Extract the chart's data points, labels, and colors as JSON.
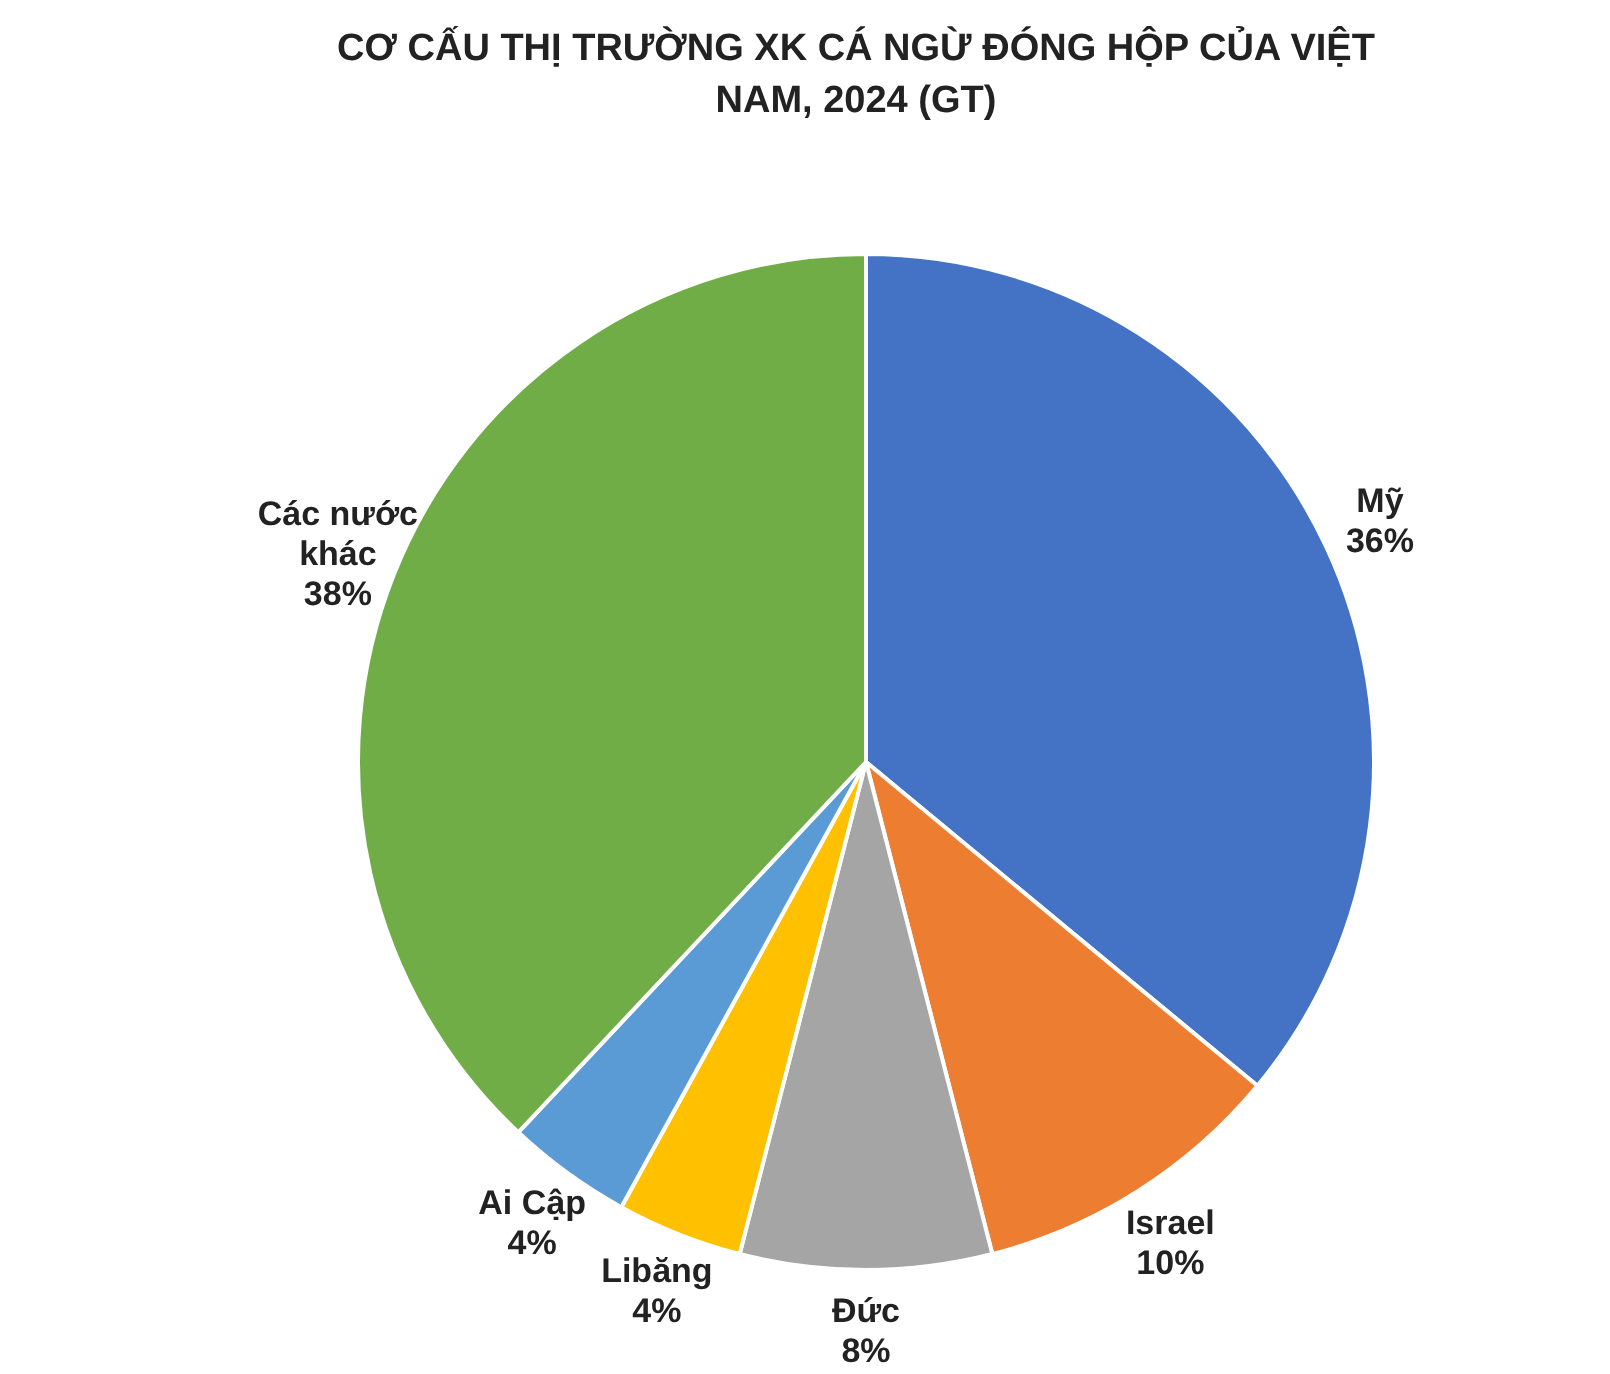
{
  "chart_data": {
    "type": "pie",
    "title": "CƠ CẤU THỊ TRƯỜNG XK CÁ NGỪ ĐÓNG HỘP CỦA VIỆT NAM, 2024 (GT)",
    "categories": [
      "Mỹ",
      "Israel",
      "Đức",
      "Libăng",
      "Ai Cập",
      "Các nước khác"
    ],
    "values": [
      36,
      10,
      8,
      4,
      4,
      38
    ],
    "colors": [
      "#4472c4",
      "#ed7d31",
      "#a5a5a5",
      "#ffc000",
      "#5b9bd5",
      "#70ad47"
    ],
    "value_labels": [
      "36%",
      "10%",
      "8%",
      "4%",
      "4%",
      "38%"
    ]
  }
}
